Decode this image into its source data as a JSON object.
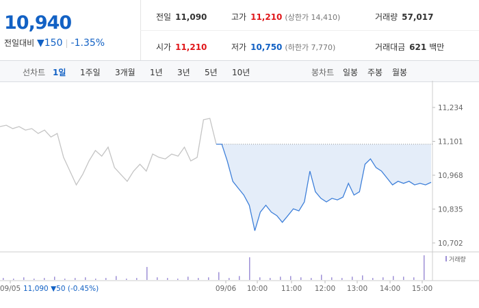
{
  "header": {
    "price": "10,940",
    "change_label": "전일대비",
    "change": "▼150",
    "change_rate": "-1.35%",
    "stats": [
      {
        "label": "전일",
        "value": "11,090"
      },
      {
        "label": "고가",
        "value": "11,210",
        "color": "#e0181b",
        "note": "(상한가 14,410)"
      },
      {
        "label": "거래량",
        "value": "57,017"
      },
      {
        "label": "시가",
        "value": "11,210",
        "color": "#e0181b"
      },
      {
        "label": "저가",
        "value": "10,750",
        "color": "#1261c4",
        "note": "(하한가 7,770)"
      },
      {
        "label": "거래대금",
        "value": "621",
        "unit": "백만"
      }
    ]
  },
  "tabs": {
    "line_label": "선차트",
    "line_options": [
      "1일",
      "1주일",
      "3개월",
      "1년",
      "3년",
      "5년",
      "10년"
    ],
    "selected_index": 0,
    "candle_label": "봉차트",
    "candle_options": [
      "일봉",
      "주봉",
      "월봉"
    ]
  },
  "chart_data": {
    "type": "line",
    "series": [
      {
        "color": "#c4c4c4",
        "values": [
          11159,
          11164,
          11151,
          11159,
          11145,
          11151,
          11132,
          11145,
          11118,
          11132,
          11038,
          10984,
          10930,
          10971,
          11024,
          11065,
          11043,
          11078,
          10998,
          10971,
          10944,
          10984,
          11011,
          10984,
          11051,
          11038,
          11032,
          11051,
          11043,
          11078,
          11024,
          11038,
          11186,
          11191,
          11090
        ]
      },
      {
        "color": "#3d7fd9",
        "fill": "#e4edf9",
        "values": [
          11090,
          11090,
          11024,
          10944,
          10917,
          10890,
          10850,
          10750,
          10823,
          10850,
          10823,
          10809,
          10783,
          10809,
          10836,
          10828,
          10863,
          10984,
          10903,
          10877,
          10863,
          10877,
          10871,
          10882,
          10936,
          10890,
          10903,
          11011,
          11032,
          10998,
          10984,
          10957,
          10930,
          10944,
          10936,
          10944,
          10930,
          10936,
          10930,
          10940
        ]
      }
    ],
    "volume": {
      "name": "거래량",
      "color": "#9d8fd6",
      "values": [
        3,
        2,
        4,
        2,
        3,
        5,
        2,
        3,
        4,
        2,
        3,
        6,
        2,
        3,
        20,
        4,
        3,
        2,
        5,
        3,
        4,
        12,
        3,
        6,
        35,
        4,
        3,
        5,
        6,
        4,
        3,
        8,
        4,
        3,
        5,
        7,
        3,
        4,
        6,
        5,
        4,
        38
      ]
    },
    "ylim": [
      10675,
      11320
    ],
    "yticks": [
      {
        "value": 10702,
        "label": "10,702"
      },
      {
        "value": 10835,
        "label": "10,835"
      },
      {
        "value": 10968,
        "label": "10,968"
      },
      {
        "value": 11101,
        "label": "11,101"
      },
      {
        "value": 11234,
        "label": "11,234"
      }
    ],
    "x_labels": [
      "09/05",
      "09/06",
      "10:00",
      "11:00",
      "12:00",
      "13:00",
      "14:00",
      "15:00"
    ],
    "reference_line": 11090,
    "prev_day_summary": "11,090 ▼50 (-0.45%)"
  }
}
